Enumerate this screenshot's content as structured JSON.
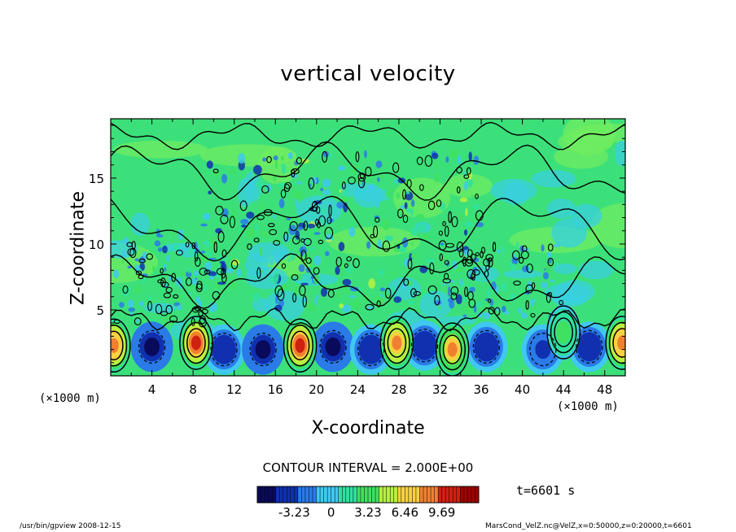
{
  "chart_data": {
    "type": "heatmap",
    "title": "vertical velocity",
    "xlabel": "X-coordinate",
    "ylabel": "Z-coordinate",
    "x_unit": "(×1000 m)",
    "xlim": [
      0,
      50
    ],
    "ylim": [
      0,
      19.5
    ],
    "x_ticks": [
      4,
      8,
      12,
      16,
      20,
      24,
      28,
      32,
      36,
      40,
      44,
      48
    ],
    "y_ticks": [
      5,
      10,
      15
    ],
    "x_tick_labels": [
      "4",
      "8",
      "12",
      "16",
      "20",
      "24",
      "28",
      "32",
      "36",
      "40",
      "44",
      "48"
    ],
    "y_tick_labels": [
      "5",
      "10",
      "15"
    ],
    "contour_interval_text": "CONTOUR INTERVAL = 2.000E+00",
    "contour_interval": 2.0,
    "colorbar": {
      "min": -6.46,
      "max": 12.92,
      "ticks": [
        -3.23,
        0,
        3.23,
        6.46,
        9.69
      ],
      "tick_labels": [
        "-3.23",
        "0",
        "3.23",
        "6.46",
        "9.69"
      ],
      "colors": [
        "#0a0a5a",
        "#1030b0",
        "#2a7ae8",
        "#40c8f0",
        "#30e0a0",
        "#40e060",
        "#b8f040",
        "#f8d040",
        "#f08030",
        "#d02010",
        "#a00000"
      ]
    },
    "updrafts": [
      {
        "x": 0.3,
        "z": 2.3,
        "value": 9.0
      },
      {
        "x": 8.3,
        "z": 2.5,
        "value": 10.5
      },
      {
        "x": 18.4,
        "z": 2.3,
        "value": 11.0
      },
      {
        "x": 27.8,
        "z": 2.5,
        "value": 8.5
      },
      {
        "x": 33.2,
        "z": 2.0,
        "value": 8.0
      },
      {
        "x": 49.7,
        "z": 2.5,
        "value": 9.0
      },
      {
        "x": 44.0,
        "z": 3.3,
        "value": 3.0
      }
    ],
    "downdrafts": [
      {
        "x": 4.0,
        "z": 2.2,
        "value": -5.0
      },
      {
        "x": 11.0,
        "z": 2.0,
        "value": -4.5
      },
      {
        "x": 14.8,
        "z": 2.0,
        "value": -5.5
      },
      {
        "x": 21.6,
        "z": 2.2,
        "value": -5.0
      },
      {
        "x": 25.3,
        "z": 2.0,
        "value": -4.0
      },
      {
        "x": 30.5,
        "z": 2.3,
        "value": -4.5
      },
      {
        "x": 36.5,
        "z": 2.2,
        "value": -4.0
      },
      {
        "x": 42.0,
        "z": 2.0,
        "value": -3.5
      },
      {
        "x": 46.5,
        "z": 2.2,
        "value": -4.5
      }
    ],
    "turbulent_region": {
      "x_range": [
        9,
        36
      ],
      "z_range": [
        5,
        17
      ],
      "label": ""
    },
    "colorbar_ticks_note": ""
  },
  "time_label": "t=6601 s",
  "footer": {
    "left": "/usr/bin/gpview   2008-12-15",
    "right": "MarsCond_VelZ.nc@VelZ,x=0:50000,z=0:20000,t=6601"
  }
}
